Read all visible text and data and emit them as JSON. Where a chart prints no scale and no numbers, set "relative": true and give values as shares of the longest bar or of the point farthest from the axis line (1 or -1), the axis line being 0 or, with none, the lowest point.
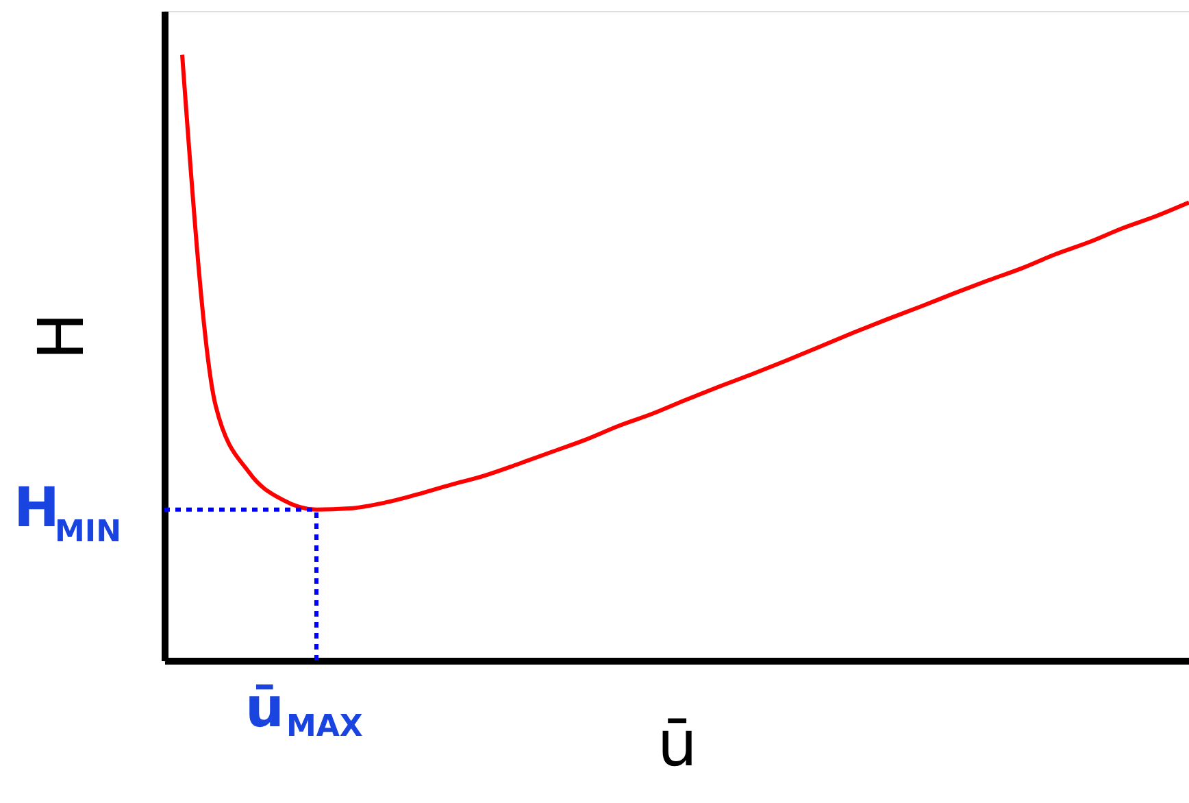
{
  "chart_data": {
    "type": "line",
    "relative": true,
    "xlabel": "ū",
    "ylabel": "H",
    "categories": [
      null,
      null,
      null,
      null,
      null,
      null,
      null,
      null,
      null,
      null,
      null,
      null,
      null,
      null,
      null,
      null,
      null,
      null,
      null,
      null,
      null,
      null,
      null,
      null,
      null,
      null,
      null,
      null,
      null,
      null,
      null
    ],
    "series": [
      {
        "color": "#ff0000",
        "values": [
          1,
          0.42,
          0.31,
          0.265,
          0.249,
          0.251,
          0.26,
          0.274,
          0.29,
          0.305,
          0.324,
          0.344,
          0.364,
          0.387,
          0.407,
          0.43,
          0.452,
          0.473,
          0.495,
          0.518,
          0.541,
          0.563,
          0.584,
          0.606,
          0.627,
          0.647,
          0.67,
          0.69,
          0.713,
          0.733,
          0.756
        ]
      }
    ],
    "ref_lines": [
      {
        "axis": "y",
        "value": 0.249,
        "label": "H$_{MIN}$",
        "color": "#0000ff",
        "line_style": "dotted"
      }
    ],
    "annotations": [
      "ū$_{MAX}$"
    ],
    "grid": false,
    "marker": "none",
    "line_style": "solid"
  }
}
